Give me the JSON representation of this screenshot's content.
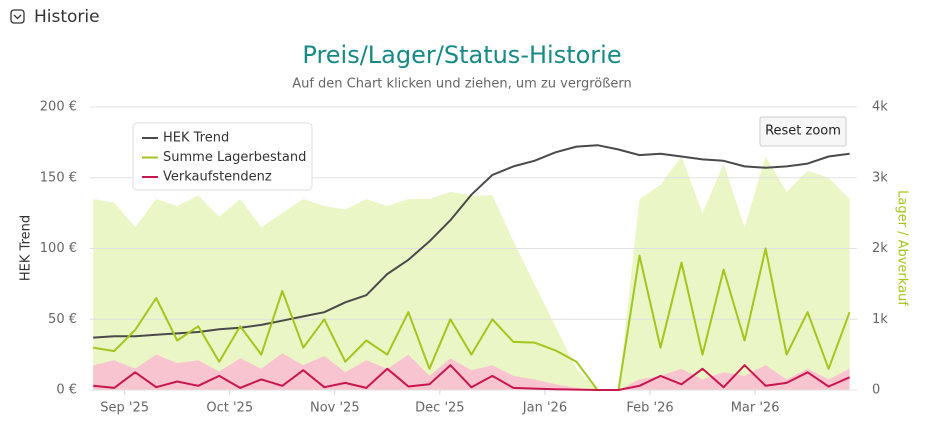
{
  "header": {
    "title": "Historie"
  },
  "chart_data": {
    "type": "line",
    "title": "Preis/Lager/Status-Historie",
    "subtitle": "Auf den Chart klicken und ziehen, um zu vergrößern",
    "reset_button": "Reset zoom",
    "y_label": "HEK Trend",
    "y2_label": "Lager / Abverkauf",
    "grid": true,
    "legend": "top-left",
    "x": [
      -0.3,
      -0.1,
      0.1,
      0.3,
      0.5,
      0.7,
      0.9,
      1.1,
      1.3,
      1.5,
      1.7,
      1.9,
      2.1,
      2.3,
      2.5,
      2.7,
      2.9,
      3.1,
      3.3,
      3.5,
      3.7,
      3.9,
      4.1,
      4.3,
      4.5,
      4.7,
      4.9,
      5.1,
      5.3,
      5.5,
      5.7,
      5.9,
      6.1,
      6.3,
      6.5,
      6.7,
      6.9
    ],
    "xlim": [
      -0.33,
      6.97
    ],
    "xticks": [
      {
        "value": 0,
        "label": "Sep '25"
      },
      {
        "value": 1,
        "label": "Oct '25"
      },
      {
        "value": 2,
        "label": "Nov '25"
      },
      {
        "value": 3,
        "label": "Dec '25"
      },
      {
        "value": 4,
        "label": "Jan '26"
      },
      {
        "value": 5,
        "label": "Feb '26"
      },
      {
        "value": 6,
        "label": "Mar '26"
      }
    ],
    "ylim": [
      0,
      200
    ],
    "yticks": [
      {
        "value": 0,
        "label": "0 €"
      },
      {
        "value": 50,
        "label": "50 €"
      },
      {
        "value": 100,
        "label": "100 €"
      },
      {
        "value": 150,
        "label": "150 €"
      },
      {
        "value": 200,
        "label": "200 €"
      }
    ],
    "y2lim": [
      0,
      4000
    ],
    "y2ticks": [
      0,
      {
        "value": 1000,
        "label": "1k"
      },
      {
        "value": 2000,
        "label": "2k"
      },
      {
        "value": 3000,
        "label": "3k"
      },
      {
        "value": 4000,
        "label": "4k"
      }
    ],
    "series": [
      {
        "color": "#eaf6c6",
        "area": true,
        "axis": "y2",
        "values": [
          2700,
          2650,
          2300,
          2700,
          2600,
          2750,
          2450,
          2700,
          2300,
          2500,
          2700,
          2600,
          2550,
          2700,
          2600,
          2700,
          2700,
          2800,
          2750,
          2750,
          2100,
          1500,
          900,
          300,
          0,
          0,
          2700,
          2900,
          3300,
          2500,
          3200,
          2300,
          3300,
          2800,
          3100,
          3000,
          2700
        ]
      },
      {
        "color": "#f8c4cf",
        "area": true,
        "axis": "y2",
        "values": [
          350,
          420,
          300,
          500,
          380,
          420,
          260,
          450,
          300,
          520,
          350,
          480,
          250,
          420,
          300,
          500,
          200,
          450,
          280,
          350,
          200,
          150,
          80,
          30,
          0,
          0,
          150,
          200,
          300,
          150,
          250,
          200,
          350,
          150,
          300,
          150,
          300
        ]
      },
      {
        "name": "HEK Trend",
        "color": "#4a4a4a",
        "axis": "y",
        "values": [
          37,
          38,
          38,
          39,
          40,
          41,
          43,
          44,
          46,
          49,
          52,
          55,
          62,
          67,
          82,
          92,
          105,
          120,
          138,
          152,
          158,
          162,
          168,
          172,
          173,
          170,
          166,
          167,
          165,
          163,
          162,
          158,
          157,
          158,
          160,
          165,
          167
        ]
      },
      {
        "name": "Summe Lagerbestand",
        "color": "#a3c61e",
        "axis": "y2",
        "values": [
          600,
          550,
          850,
          1300,
          700,
          900,
          400,
          900,
          500,
          1400,
          600,
          1000,
          400,
          700,
          500,
          1100,
          300,
          1000,
          500,
          1000,
          680,
          670,
          560,
          400,
          0,
          0,
          1900,
          600,
          1800,
          500,
          1700,
          700,
          2000,
          500,
          1100,
          300,
          1100
        ]
      },
      {
        "name": "Verkaufstendenz",
        "color": "#c8174e",
        "axis": "y2",
        "values": [
          60,
          30,
          250,
          40,
          120,
          60,
          200,
          30,
          150,
          60,
          280,
          40,
          100,
          30,
          300,
          50,
          80,
          350,
          40,
          200,
          30,
          20,
          10,
          5,
          0,
          0,
          60,
          200,
          80,
          300,
          40,
          350,
          60,
          100,
          250,
          50,
          180
        ]
      }
    ]
  }
}
